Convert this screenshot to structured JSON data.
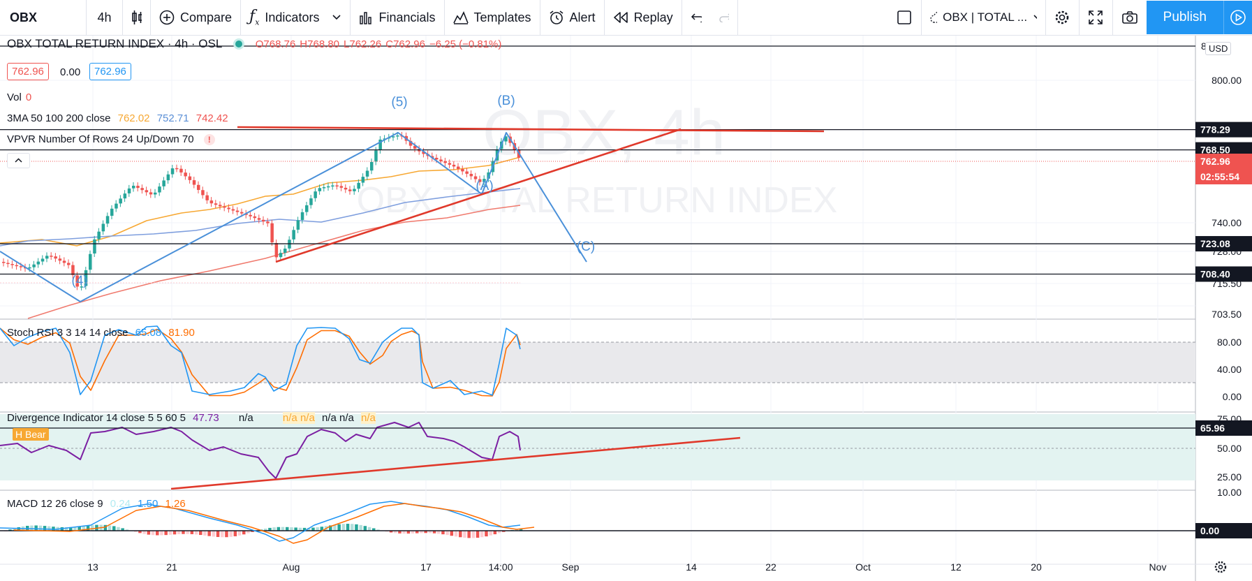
{
  "toolbar": {
    "symbol": "OBX",
    "interval": "4h",
    "compare": "Compare",
    "indicators": "Indicators",
    "financials": "Financials",
    "templates": "Templates",
    "alert": "Alert",
    "replay": "Replay",
    "layout_name": "OBX | TOTAL ...",
    "publish": "Publish"
  },
  "legend": {
    "title": "OBX TOTAL RETURN INDEX · 4h · OSL",
    "o": "O768.76",
    "h": "H768.80",
    "l": "L762.26",
    "c": "C762.96",
    "chg": "−6.25 (−0.81%)",
    "box_left": "762.96",
    "box_mid": "0.00",
    "box_right": "762.96",
    "vol_label": "Vol",
    "vol_value": "0",
    "ma_label": "3MA 50 100 200 close",
    "ma50": "762.02",
    "ma100": "752.71",
    "ma200": "742.42",
    "vpvr_label": "VPVR Number Of Rows 24 Up/Down 70",
    "stoch_label": "Stoch RSI 3 3 14 14 close",
    "stoch_k": "65.08",
    "stoch_d": "81.90",
    "div_label": "Divergence Indicator 14 close 5 5 60 5",
    "div_value": "47.73",
    "div_na": "n/a",
    "div_na2": "n/a n/a",
    "div_na3": "n/a n/a",
    "div_na4": "n/a",
    "hbear": "H Bear",
    "macd_label": "MACD 12 26 close 9",
    "macd_a": "0.24",
    "macd_b": "1.50",
    "macd_c": "1.26"
  },
  "watermark": {
    "big": "OBX, 4h",
    "sub": "OBX TOTAL RETURN INDEX"
  },
  "waves": {
    "w5": "(5)",
    "wB": "(B)",
    "wA": "(A)",
    "wC": "(C)",
    "w4": "(4)"
  },
  "price_axis": {
    "currency": "USD",
    "ticks": [
      "800.00",
      "740.00",
      "728.00",
      "715.50",
      "703.50"
    ],
    "top_label": "8",
    "pills": {
      "p1": "778.29",
      "p2": "768.50",
      "p3": "762.96",
      "countdown": "02:55:54",
      "p4": "723.08",
      "p5": "708.40"
    }
  },
  "stoch_axis": {
    "ticks": [
      "80.00",
      "40.00",
      "0.00"
    ]
  },
  "div_axis": {
    "ticks": [
      "75.00",
      "50.00",
      "25.00"
    ],
    "pill": "65.96"
  },
  "macd_axis": {
    "ticks": [
      "10.00"
    ],
    "pill": "0.00"
  },
  "time_axis": {
    "labels": [
      "13",
      "21",
      "Aug",
      "17",
      "14:00",
      "Sep",
      "14",
      "22",
      "Oct",
      "12",
      "20",
      "Nov"
    ]
  },
  "colors": {
    "up": "#26a69a",
    "down": "#ef5350",
    "ma50": "#f7a833",
    "ma100": "#7e9ede",
    "ma200": "#f07a6e",
    "blue": "#4a90d9",
    "trend": "#e0392b",
    "accent": "#2196f3"
  },
  "chart_data": {
    "type": "candlestick",
    "symbol": "OBX TOTAL RETURN INDEX",
    "interval": "4h",
    "last": {
      "open": 768.76,
      "high": 768.8,
      "low": 762.26,
      "close": 762.96,
      "change": -6.25,
      "change_pct": -0.81
    },
    "ma": {
      "ma50": 762.02,
      "ma100": 752.71,
      "ma200": 742.42
    },
    "levels": [
      778.29,
      768.5,
      723.08,
      708.4
    ],
    "stoch_rsi": {
      "k": 65.08,
      "d": 81.9
    },
    "divergence": 47.73,
    "macd": {
      "hist": 0.24,
      "macd": 1.5,
      "signal": 1.26
    }
  }
}
